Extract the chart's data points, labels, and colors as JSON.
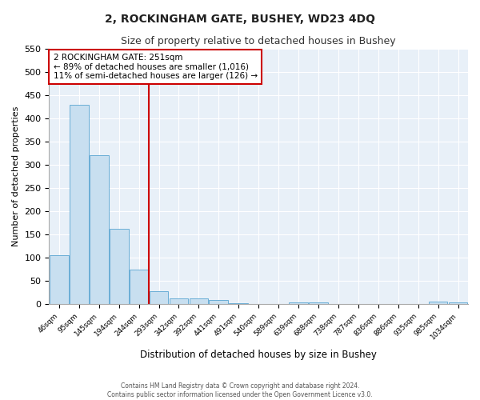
{
  "title": "2, ROCKINGHAM GATE, BUSHEY, WD23 4DQ",
  "subtitle": "Size of property relative to detached houses in Bushey",
  "xlabel": "Distribution of detached houses by size in Bushey",
  "ylabel": "Number of detached properties",
  "bar_labels": [
    "46sqm",
    "95sqm",
    "145sqm",
    "194sqm",
    "244sqm",
    "293sqm",
    "342sqm",
    "392sqm",
    "441sqm",
    "491sqm",
    "540sqm",
    "589sqm",
    "639sqm",
    "688sqm",
    "738sqm",
    "787sqm",
    "836sqm",
    "886sqm",
    "935sqm",
    "985sqm",
    "1034sqm"
  ],
  "bar_heights": [
    105,
    428,
    321,
    162,
    75,
    27,
    13,
    13,
    8,
    2,
    0,
    0,
    3,
    3,
    0,
    0,
    0,
    0,
    0,
    5,
    3
  ],
  "bar_color": "#c8dff0",
  "bar_edge_color": "#6aaed6",
  "vline_color": "#cc0000",
  "annotation_title": "2 ROCKINGHAM GATE: 251sqm",
  "annotation_line1": "← 89% of detached houses are smaller (1,016)",
  "annotation_line2": "11% of semi-detached houses are larger (126) →",
  "annotation_box_edgecolor": "#cc0000",
  "ylim": [
    0,
    550
  ],
  "yticks": [
    0,
    50,
    100,
    150,
    200,
    250,
    300,
    350,
    400,
    450,
    500,
    550
  ],
  "footer1": "Contains HM Land Registry data © Crown copyright and database right 2024.",
  "footer2": "Contains public sector information licensed under the Open Government Licence v3.0.",
  "bg_color": "#ffffff",
  "plot_bg_color": "#e8f0f8"
}
